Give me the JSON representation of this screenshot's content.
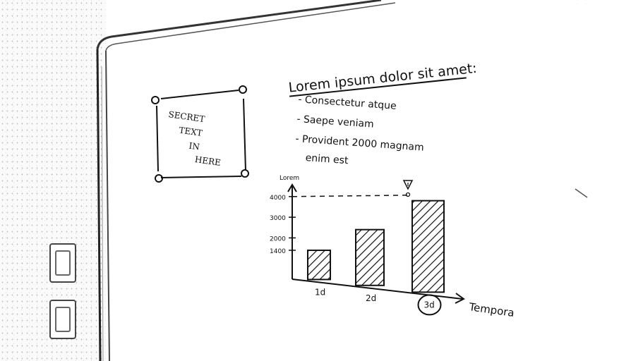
{
  "note": {
    "title": "Lorem ipsum dolor sit amet:",
    "bullets": [
      "- Consectetur atque",
      "- Saepe veniam",
      "- Provident 2000 magnam"
    ],
    "bullet_continuation": "enim est"
  },
  "sticky_frame": {
    "lines": [
      "SECRET",
      "TEXT",
      "IN",
      "HERE"
    ]
  },
  "chart_data": {
    "type": "bar",
    "ylabel": "Lorem",
    "xlabel": "Tempora",
    "categories": [
      "1d",
      "2d",
      "3d"
    ],
    "values": [
      1400,
      2400,
      3800
    ],
    "yticks": [
      1400,
      2000,
      3000,
      4000
    ],
    "ytick_labels": [
      "1400",
      "2000",
      "3000",
      "4000"
    ],
    "ylim": [
      0,
      4300
    ],
    "reference_line": 4000,
    "highlighted_category": "3d",
    "bar_fill": "diagonal-hatch"
  }
}
